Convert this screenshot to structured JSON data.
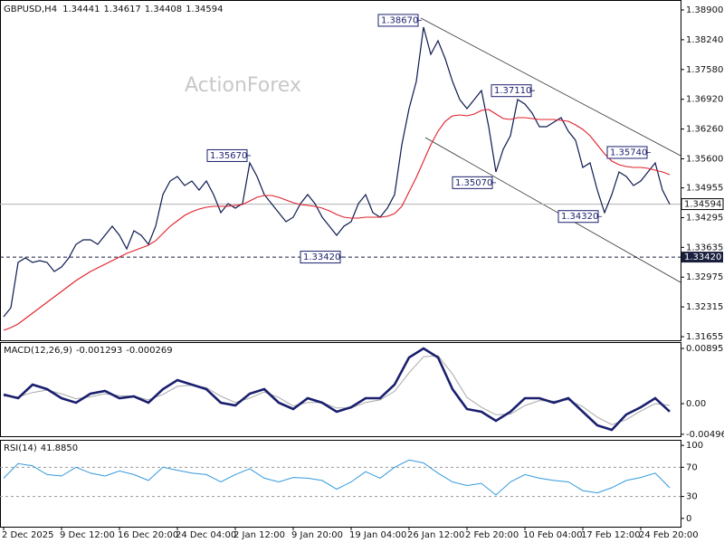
{
  "chart_data": [
    {
      "type": "line",
      "title": "GBPUSD,H4",
      "ohlc": [
        1.34441,
        1.34617,
        1.34408,
        1.34594
      ],
      "watermark": "ActionForex",
      "categories": [
        "2 Dec 2025",
        null,
        null,
        null,
        null,
        null,
        null,
        null,
        "9 Dec 12:00",
        null,
        null,
        null,
        null,
        null,
        null,
        null,
        "16 Dec 20:00",
        null,
        null,
        null,
        null,
        null,
        null,
        null,
        "24 Dec 04:00",
        null,
        null,
        null,
        null,
        null,
        null,
        null,
        "2 Jan 12:00",
        null,
        null,
        null,
        null,
        null,
        null,
        null,
        "9 Jan 20:00",
        null,
        null,
        null,
        null,
        null,
        null,
        null,
        "19 Jan 04:00",
        null,
        null,
        null,
        null,
        null,
        null,
        null,
        "26 Jan 12:00",
        null,
        null,
        null,
        null,
        null,
        null,
        null,
        "2 Feb 20:00",
        null,
        null,
        null,
        null,
        null,
        null,
        null,
        "10 Feb 04:00",
        null,
        null,
        null,
        null,
        null,
        null,
        null,
        "17 Feb 12:00",
        null,
        null,
        null,
        null,
        null,
        null,
        null,
        "24 Feb 20:00",
        null,
        null,
        null,
        null
      ],
      "series": [
        {
          "name": "GBPUSD",
          "color": "#0d1a50",
          "values": [
            1.32096,
            1.32297,
            1.33301,
            1.33401,
            1.33301,
            1.33341,
            1.33301,
            1.331,
            1.332,
            1.33401,
            1.33702,
            1.33803,
            1.33803,
            1.33702,
            1.33903,
            1.34104,
            1.33903,
            1.33602,
            1.34003,
            1.33903,
            1.33702,
            1.34104,
            1.34806,
            1.35107,
            1.35207,
            1.35007,
            1.35107,
            1.34906,
            1.35107,
            1.34806,
            1.34405,
            1.34605,
            1.34505,
            1.34605,
            1.35508,
            1.35207,
            1.34806,
            1.34605,
            1.34405,
            1.34204,
            1.34304,
            1.34605,
            1.34806,
            1.34605,
            1.34304,
            1.34104,
            1.33903,
            1.34104,
            1.34204,
            1.34605,
            1.34806,
            1.34405,
            1.34304,
            1.34505,
            1.34806,
            1.3591,
            1.36713,
            1.37315,
            1.38519,
            1.37917,
            1.38218,
            1.37816,
            1.37315,
            1.36913,
            1.36713,
            1.36913,
            1.37114,
            1.36311,
            1.35308,
            1.35809,
            1.36111,
            1.36913,
            1.36813,
            1.36612,
            1.36311,
            1.36311,
            1.36412,
            1.36512,
            1.36211,
            1.3601,
            1.35408,
            1.35508,
            1.34906,
            1.34405,
            1.34806,
            1.35308,
            1.35207,
            1.35007,
            1.35107,
            1.35308,
            1.35508,
            1.34906,
            1.34594
          ]
        },
        {
          "name": "MA",
          "color": "#e0202a",
          "values": [
            1.31795,
            1.31856,
            1.31936,
            1.32056,
            1.32177,
            1.32297,
            1.32418,
            1.32538,
            1.32658,
            1.32779,
            1.32899,
            1.33,
            1.331,
            1.3318,
            1.33261,
            1.33341,
            1.33421,
            1.33501,
            1.33562,
            1.33622,
            1.33682,
            1.33782,
            1.33943,
            1.34103,
            1.34224,
            1.34344,
            1.34425,
            1.34485,
            1.34525,
            1.34545,
            1.34545,
            1.34545,
            1.34565,
            1.34585,
            1.34665,
            1.34746,
            1.34786,
            1.34786,
            1.34746,
            1.34686,
            1.34625,
            1.34585,
            1.34565,
            1.34545,
            1.34505,
            1.34445,
            1.34365,
            1.34304,
            1.34284,
            1.34284,
            1.34304,
            1.34304,
            1.34304,
            1.34324,
            1.34385,
            1.34545,
            1.34866,
            1.35187,
            1.35549,
            1.3591,
            1.36211,
            1.36432,
            1.36552,
            1.36572,
            1.36552,
            1.36592,
            1.36672,
            1.36693,
            1.36592,
            1.36492,
            1.36472,
            1.36512,
            1.36512,
            1.36492,
            1.36472,
            1.36472,
            1.36472,
            1.36452,
            1.36432,
            1.36351,
            1.36251,
            1.36111,
            1.3591,
            1.35709,
            1.35549,
            1.35468,
            1.35428,
            1.35408,
            1.35408,
            1.35388,
            1.35348,
            1.35308,
            1.35247
          ]
        }
      ],
      "annotations": [
        {
          "value": 1.3867,
          "label": "1.38670"
        },
        {
          "value": 1.3567,
          "label": "1.35670"
        },
        {
          "value": 1.3711,
          "label": "1.37110"
        },
        {
          "value": 1.3574,
          "label": "1.35740"
        },
        {
          "value": 1.3507,
          "label": "1.35070"
        },
        {
          "value": 1.3432,
          "label": "1.34320"
        },
        {
          "value": 1.3342,
          "label": "1.33420"
        }
      ],
      "last_price": {
        "value": 1.34594,
        "label": "1.34594"
      },
      "support": {
        "value": 1.3342,
        "label": "1.33420"
      },
      "ylim": [
        1.31575,
        1.39121
      ],
      "yticks": [
        {
          "value": 1.389,
          "label": "1.38900"
        },
        {
          "value": 1.3824,
          "label": "1.38240"
        },
        {
          "value": 1.3758,
          "label": "1.37580"
        },
        {
          "value": 1.3692,
          "label": "1.36920"
        },
        {
          "value": 1.3626,
          "label": "1.36260"
        },
        {
          "value": 1.356,
          "label": "1.35600"
        },
        {
          "value": 1.34955,
          "label": "1.34955"
        },
        {
          "value": 1.34295,
          "label": "1.34295"
        },
        {
          "value": 1.33635,
          "label": "1.33635"
        },
        {
          "value": 1.32975,
          "label": "1.32975"
        },
        {
          "value": 1.32315,
          "label": "1.32315"
        },
        {
          "value": 1.31655,
          "label": "1.31655"
        }
      ]
    },
    {
      "type": "line",
      "title": "MACD(12,26,9)",
      "readings": [
        -0.001293,
        -0.000269
      ],
      "series": [
        {
          "name": "MACD",
          "color": "#1a1f6e",
          "values": [
            0.00147,
            0.00088,
            0.00308,
            0.00235,
            0.00088,
            0.00015,
            0.00161,
            0.00206,
            0.00088,
            0.00117,
            0.00015,
            0.00235,
            0.00382,
            0.00308,
            0.00235,
            0.00015,
            -0.00029,
            0.00161,
            0.00235,
            0.00015,
            -0.00088,
            0.00088,
            0.00015,
            -0.00132,
            -0.00059,
            0.00088,
            0.00088,
            0.00308,
            0.00749,
            0.00895,
            0.00749,
            0.00235,
            -0.00088,
            -0.00132,
            -0.00279,
            -0.00132,
            0.00088,
            0.00088,
            0.00015,
            0.00088,
            -0.00132,
            -0.00352,
            -0.00426,
            -0.00176,
            -0.00059,
            0.00088,
            -0.00129
          ]
        },
        {
          "name": "Signal",
          "color": "#a8a8a8",
          "values": [
            0.0012,
            0.0011,
            0.0018,
            0.0022,
            0.0016,
            0.0008,
            0.0011,
            0.0016,
            0.0013,
            0.0012,
            0.0006,
            0.0015,
            0.0028,
            0.003,
            0.0026,
            0.0012,
            0.0002,
            0.0009,
            0.0019,
            0.001,
            -0.0004,
            0.0002,
            0.0002,
            -0.0007,
            -0.0007,
            0.0002,
            0.0006,
            0.002,
            0.005,
            0.0076,
            0.0078,
            0.0048,
            0.001,
            -0.0006,
            -0.0018,
            -0.0017,
            -0.0003,
            0.0005,
            0.0004,
            0.0006,
            -0.0005,
            -0.0022,
            -0.0034,
            -0.0026,
            -0.0012,
            0,
            -0.00027
          ]
        }
      ],
      "ylim": [
        -0.00528,
        0.00998
      ],
      "yticks": [
        0.008953,
        {
          "value": 0,
          "label": "0.00"
        },
        -0.004962
      ]
    },
    {
      "type": "line",
      "title": "RSI(14)",
      "reading": {
        "value": 41.885,
        "label": "41.8850"
      },
      "series": [
        {
          "name": "RSI",
          "color": "#3399dd",
          "values": [
            55,
            75,
            72,
            60,
            58,
            70,
            62,
            58,
            65,
            60,
            52,
            70,
            66,
            62,
            60,
            50,
            60,
            68,
            55,
            50,
            56,
            55,
            52,
            40,
            50,
            64,
            55,
            70,
            80,
            76,
            62,
            50,
            45,
            48,
            32,
            50,
            60,
            55,
            52,
            50,
            38,
            35,
            42,
            52,
            56,
            62,
            41.885
          ]
        }
      ],
      "levels": [
        70,
        30
      ],
      "ylim": [
        -11.4,
        107.6
      ],
      "yticks": [
        100,
        70,
        30,
        0
      ]
    }
  ]
}
